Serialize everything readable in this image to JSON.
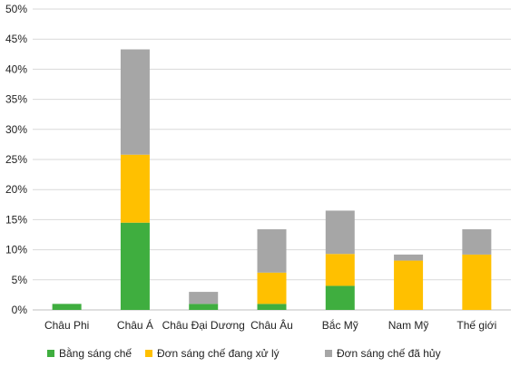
{
  "chart_data": {
    "type": "bar",
    "stacked": true,
    "categories": [
      "Châu Phi",
      "Châu Á",
      "Châu Đại Dương",
      "Châu Âu",
      "Bắc Mỹ",
      "Nam Mỹ",
      "Thế giới"
    ],
    "series": [
      {
        "name": "Bằng sáng chế",
        "color": "#3fae3f",
        "values": [
          1.0,
          14.5,
          1.0,
          1.0,
          4.0,
          0.0,
          0.0
        ]
      },
      {
        "name": "Đơn sáng chế đang xử lý",
        "color": "#ffc000",
        "values": [
          0.0,
          11.3,
          0.0,
          5.2,
          5.3,
          8.2,
          9.2
        ]
      },
      {
        "name": "Đơn sáng chế đã hủy",
        "color": "#a6a6a6",
        "values": [
          0.0,
          17.5,
          2.0,
          7.2,
          7.2,
          1.0,
          4.2
        ]
      }
    ],
    "ylim": [
      0,
      50
    ],
    "yticks": [
      "0%",
      "5%",
      "10%",
      "15%",
      "20%",
      "25%",
      "30%",
      "35%",
      "40%",
      "45%",
      "50%"
    ],
    "grid": true,
    "legend_position": "bottom"
  }
}
